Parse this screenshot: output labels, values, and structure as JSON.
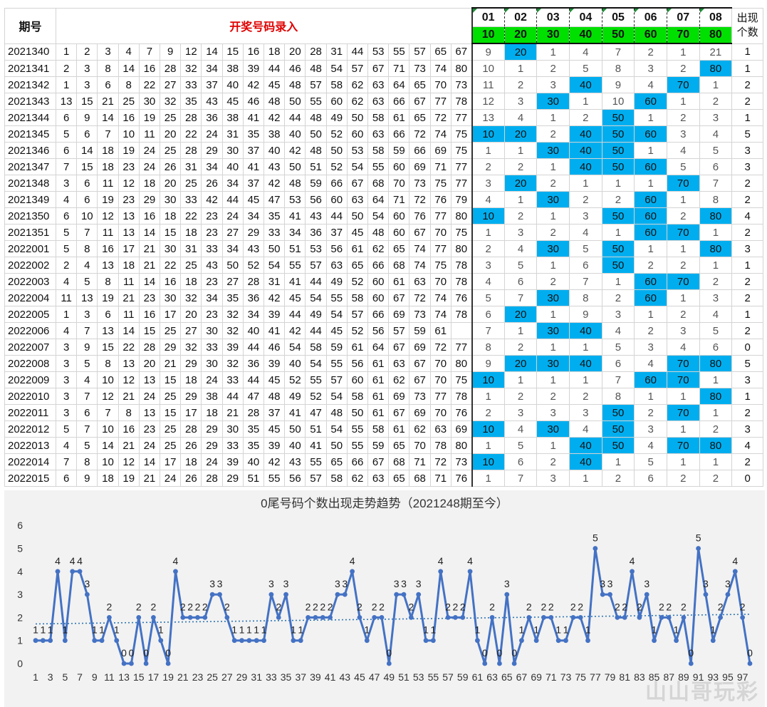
{
  "table": {
    "header_period": "期号",
    "header_title": "开奖号码录入",
    "positions": [
      "01",
      "02",
      "03",
      "04",
      "05",
      "06",
      "07",
      "08"
    ],
    "targets": [
      "10",
      "20",
      "30",
      "40",
      "50",
      "60",
      "70",
      "80"
    ],
    "count_header_line1": "出现",
    "count_header_line2": "个数",
    "rows": [
      {
        "period": "2021340",
        "nums": [
          "1",
          "2",
          "3",
          "4",
          "7",
          "9",
          "12",
          "14",
          "15",
          "16",
          "18",
          "20",
          "28",
          "31",
          "44",
          "53",
          "55",
          "57",
          "65",
          "67"
        ],
        "miss": [
          "9",
          "20",
          "1",
          "4",
          "7",
          "2",
          "1",
          "21"
        ],
        "hits": [
          1
        ],
        "count": "1"
      },
      {
        "period": "2021341",
        "nums": [
          "2",
          "3",
          "8",
          "14",
          "16",
          "28",
          "32",
          "34",
          "38",
          "39",
          "44",
          "46",
          "48",
          "54",
          "57",
          "67",
          "71",
          "73",
          "74",
          "80"
        ],
        "miss": [
          "10",
          "1",
          "2",
          "5",
          "8",
          "3",
          "2",
          "80"
        ],
        "hits": [
          7
        ],
        "count": "1"
      },
      {
        "period": "2021342",
        "nums": [
          "1",
          "3",
          "6",
          "8",
          "22",
          "27",
          "33",
          "37",
          "40",
          "42",
          "45",
          "48",
          "57",
          "58",
          "62",
          "63",
          "64",
          "65",
          "70",
          "73"
        ],
        "miss": [
          "11",
          "2",
          "3",
          "40",
          "9",
          "4",
          "70",
          "1"
        ],
        "hits": [
          3,
          6
        ],
        "count": "2"
      },
      {
        "period": "2021343",
        "nums": [
          "13",
          "15",
          "21",
          "25",
          "30",
          "32",
          "35",
          "43",
          "45",
          "46",
          "48",
          "50",
          "55",
          "60",
          "62",
          "63",
          "66",
          "67",
          "77",
          "78"
        ],
        "miss": [
          "12",
          "3",
          "30",
          "1",
          "10",
          "60",
          "1",
          "2"
        ],
        "hits": [
          2,
          5
        ],
        "count": "2"
      },
      {
        "period": "2021344",
        "nums": [
          "6",
          "9",
          "14",
          "16",
          "19",
          "25",
          "28",
          "36",
          "38",
          "41",
          "42",
          "44",
          "48",
          "49",
          "50",
          "58",
          "61",
          "65",
          "72",
          "77"
        ],
        "miss": [
          "13",
          "4",
          "1",
          "2",
          "50",
          "1",
          "2",
          "3"
        ],
        "hits": [
          4
        ],
        "count": "1"
      },
      {
        "period": "2021345",
        "nums": [
          "5",
          "6",
          "7",
          "10",
          "11",
          "20",
          "22",
          "24",
          "31",
          "35",
          "38",
          "40",
          "50",
          "52",
          "60",
          "63",
          "66",
          "72",
          "74",
          "75"
        ],
        "miss": [
          "10",
          "20",
          "2",
          "40",
          "50",
          "60",
          "3",
          "4"
        ],
        "hits": [
          0,
          1,
          3,
          4,
          5
        ],
        "count": "5"
      },
      {
        "period": "2021346",
        "nums": [
          "6",
          "14",
          "18",
          "19",
          "24",
          "25",
          "28",
          "29",
          "30",
          "37",
          "40",
          "42",
          "48",
          "50",
          "53",
          "58",
          "59",
          "66",
          "69",
          "75"
        ],
        "miss": [
          "1",
          "1",
          "30",
          "40",
          "50",
          "1",
          "4",
          "5"
        ],
        "hits": [
          2,
          3,
          4
        ],
        "count": "3"
      },
      {
        "period": "2021347",
        "nums": [
          "7",
          "15",
          "18",
          "23",
          "24",
          "26",
          "31",
          "34",
          "40",
          "41",
          "43",
          "50",
          "51",
          "52",
          "54",
          "55",
          "60",
          "69",
          "71",
          "77"
        ],
        "miss": [
          "2",
          "2",
          "1",
          "40",
          "50",
          "60",
          "5",
          "6"
        ],
        "hits": [
          3,
          4,
          5
        ],
        "count": "3"
      },
      {
        "period": "2021348",
        "nums": [
          "3",
          "6",
          "11",
          "12",
          "18",
          "20",
          "25",
          "26",
          "34",
          "37",
          "42",
          "48",
          "59",
          "66",
          "67",
          "68",
          "70",
          "73",
          "75",
          "77"
        ],
        "miss": [
          "3",
          "20",
          "2",
          "1",
          "1",
          "1",
          "70",
          "7"
        ],
        "hits": [
          1,
          6
        ],
        "count": "2"
      },
      {
        "period": "2021349",
        "nums": [
          "4",
          "6",
          "19",
          "23",
          "29",
          "30",
          "33",
          "42",
          "44",
          "45",
          "47",
          "53",
          "56",
          "60",
          "63",
          "64",
          "71",
          "72",
          "76",
          "79"
        ],
        "miss": [
          "4",
          "1",
          "30",
          "2",
          "2",
          "60",
          "1",
          "8"
        ],
        "hits": [
          2,
          5
        ],
        "count": "2"
      },
      {
        "period": "2021350",
        "nums": [
          "6",
          "10",
          "12",
          "13",
          "16",
          "18",
          "22",
          "23",
          "24",
          "34",
          "35",
          "41",
          "43",
          "44",
          "50",
          "54",
          "60",
          "76",
          "77",
          "80"
        ],
        "miss": [
          "10",
          "2",
          "1",
          "3",
          "50",
          "60",
          "2",
          "80"
        ],
        "hits": [
          0,
          4,
          5,
          7
        ],
        "count": "4"
      },
      {
        "period": "2021351",
        "nums": [
          "5",
          "7",
          "11",
          "13",
          "14",
          "15",
          "18",
          "23",
          "27",
          "29",
          "33",
          "34",
          "36",
          "37",
          "45",
          "48",
          "60",
          "67",
          "70",
          "75"
        ],
        "miss": [
          "1",
          "3",
          "2",
          "4",
          "1",
          "60",
          "70",
          "1"
        ],
        "hits": [
          5,
          6
        ],
        "count": "2"
      },
      {
        "period": "2022001",
        "nums": [
          "5",
          "8",
          "16",
          "17",
          "21",
          "30",
          "31",
          "33",
          "34",
          "43",
          "50",
          "51",
          "53",
          "56",
          "61",
          "62",
          "65",
          "74",
          "77",
          "80"
        ],
        "miss": [
          "2",
          "4",
          "30",
          "5",
          "50",
          "1",
          "1",
          "80"
        ],
        "hits": [
          2,
          4,
          7
        ],
        "count": "3"
      },
      {
        "period": "2022002",
        "nums": [
          "2",
          "4",
          "13",
          "18",
          "21",
          "22",
          "25",
          "43",
          "50",
          "52",
          "54",
          "55",
          "57",
          "63",
          "65",
          "66",
          "68",
          "74",
          "75",
          "78"
        ],
        "miss": [
          "3",
          "5",
          "1",
          "6",
          "50",
          "2",
          "2",
          "1"
        ],
        "hits": [
          4
        ],
        "count": "1"
      },
      {
        "period": "2022003",
        "nums": [
          "4",
          "5",
          "8",
          "11",
          "14",
          "16",
          "18",
          "23",
          "27",
          "28",
          "31",
          "41",
          "44",
          "49",
          "52",
          "60",
          "61",
          "63",
          "70",
          "78"
        ],
        "miss": [
          "4",
          "6",
          "2",
          "7",
          "1",
          "60",
          "70",
          "2"
        ],
        "hits": [
          5,
          6
        ],
        "count": "2"
      },
      {
        "period": "2022004",
        "nums": [
          "11",
          "13",
          "19",
          "21",
          "23",
          "30",
          "32",
          "34",
          "35",
          "36",
          "42",
          "45",
          "54",
          "55",
          "58",
          "60",
          "67",
          "72",
          "74",
          "76"
        ],
        "miss": [
          "5",
          "7",
          "30",
          "8",
          "2",
          "60",
          "1",
          "3"
        ],
        "hits": [
          2,
          5
        ],
        "count": "2"
      },
      {
        "period": "2022005",
        "nums": [
          "1",
          "3",
          "6",
          "11",
          "16",
          "17",
          "20",
          "23",
          "32",
          "34",
          "39",
          "44",
          "49",
          "54",
          "57",
          "66",
          "69",
          "73",
          "74",
          "78"
        ],
        "miss": [
          "6",
          "20",
          "1",
          "9",
          "3",
          "1",
          "2",
          "4"
        ],
        "hits": [
          1
        ],
        "count": "1"
      },
      {
        "period": "2022006",
        "nums": [
          "4",
          "7",
          "13",
          "14",
          "15",
          "25",
          "27",
          "30",
          "32",
          "40",
          "41",
          "42",
          "44",
          "45",
          "52",
          "56",
          "57",
          "59",
          "61"
        ],
        "miss": [
          "7",
          "1",
          "30",
          "40",
          "4",
          "2",
          "3",
          "5"
        ],
        "hits": [
          2,
          3
        ],
        "count": "2"
      },
      {
        "period": "2022007",
        "nums": [
          "3",
          "9",
          "15",
          "22",
          "28",
          "29",
          "32",
          "33",
          "39",
          "44",
          "46",
          "54",
          "58",
          "59",
          "61",
          "64",
          "67",
          "69",
          "72",
          "77"
        ],
        "miss": [
          "8",
          "2",
          "1",
          "1",
          "5",
          "3",
          "4",
          "6"
        ],
        "hits": [],
        "count": "0"
      },
      {
        "period": "2022008",
        "nums": [
          "3",
          "5",
          "8",
          "13",
          "20",
          "21",
          "29",
          "30",
          "32",
          "36",
          "39",
          "40",
          "54",
          "55",
          "56",
          "61",
          "63",
          "67",
          "70",
          "80"
        ],
        "miss": [
          "9",
          "20",
          "30",
          "40",
          "6",
          "4",
          "70",
          "80"
        ],
        "hits": [
          1,
          2,
          3,
          6,
          7
        ],
        "count": "5"
      },
      {
        "period": "2022009",
        "nums": [
          "3",
          "4",
          "10",
          "12",
          "13",
          "15",
          "18",
          "24",
          "33",
          "44",
          "45",
          "52",
          "55",
          "57",
          "60",
          "61",
          "62",
          "67",
          "70",
          "75"
        ],
        "miss": [
          "10",
          "1",
          "1",
          "1",
          "7",
          "60",
          "70",
          "1"
        ],
        "hits": [
          0,
          5,
          6
        ],
        "count": "3"
      },
      {
        "period": "2022010",
        "nums": [
          "3",
          "7",
          "12",
          "21",
          "24",
          "25",
          "29",
          "38",
          "44",
          "47",
          "48",
          "49",
          "52",
          "54",
          "58",
          "61",
          "69",
          "73",
          "77",
          "78",
          "80"
        ],
        "miss": [
          "1",
          "2",
          "2",
          "2",
          "8",
          "1",
          "1",
          "80"
        ],
        "hits": [
          7
        ],
        "count": "1"
      },
      {
        "period": "2022011",
        "nums": [
          "3",
          "6",
          "7",
          "8",
          "13",
          "15",
          "17",
          "18",
          "21",
          "28",
          "37",
          "41",
          "47",
          "48",
          "50",
          "61",
          "67",
          "69",
          "70",
          "76"
        ],
        "miss": [
          "2",
          "3",
          "3",
          "3",
          "50",
          "2",
          "70",
          "1"
        ],
        "hits": [
          4,
          6
        ],
        "count": "2"
      },
      {
        "period": "2022012",
        "nums": [
          "5",
          "7",
          "10",
          "16",
          "23",
          "25",
          "28",
          "29",
          "30",
          "35",
          "45",
          "50",
          "51",
          "54",
          "55",
          "58",
          "61",
          "62",
          "63",
          "69"
        ],
        "miss": [
          "10",
          "4",
          "30",
          "4",
          "50",
          "3",
          "1",
          "2"
        ],
        "hits": [
          0,
          2,
          4
        ],
        "count": "3"
      },
      {
        "period": "2022013",
        "nums": [
          "4",
          "5",
          "14",
          "21",
          "24",
          "25",
          "26",
          "29",
          "33",
          "35",
          "39",
          "40",
          "41",
          "50",
          "55",
          "59",
          "65",
          "70",
          "78",
          "80"
        ],
        "miss": [
          "1",
          "5",
          "1",
          "40",
          "50",
          "4",
          "70",
          "80"
        ],
        "hits": [
          3,
          4,
          6,
          7
        ],
        "count": "4"
      },
      {
        "period": "2022014",
        "nums": [
          "7",
          "8",
          "10",
          "12",
          "14",
          "17",
          "18",
          "24",
          "39",
          "40",
          "42",
          "43",
          "55",
          "65",
          "66",
          "67",
          "68",
          "71",
          "72",
          "73"
        ],
        "miss": [
          "10",
          "6",
          "2",
          "40",
          "1",
          "5",
          "1",
          "1"
        ],
        "hits": [
          0,
          3
        ],
        "count": "2"
      },
      {
        "period": "2022015",
        "nums": [
          "6",
          "9",
          "18",
          "19",
          "21",
          "24",
          "26",
          "28",
          "29",
          "51",
          "55",
          "56",
          "57",
          "58",
          "62",
          "63",
          "65",
          "68",
          "71",
          "76"
        ],
        "miss": [
          "1",
          "7",
          "3",
          "1",
          "2",
          "6",
          "2",
          "2"
        ],
        "hits": [],
        "count": "0"
      }
    ]
  },
  "chart_data": {
    "type": "line",
    "title": "0尾号码个数出现走势趋势（2021248期至今）",
    "xlabel": "",
    "ylabel": "",
    "ylim": [
      0,
      6
    ],
    "yticks": [
      "0",
      "1",
      "2",
      "3",
      "4",
      "5",
      "6"
    ],
    "xticks": [
      "1",
      "3",
      "5",
      "7",
      "9",
      "11",
      "13",
      "15",
      "17",
      "19",
      "21",
      "23",
      "25",
      "27",
      "29",
      "31",
      "33",
      "35",
      "37",
      "39",
      "41",
      "43",
      "45",
      "47",
      "49",
      "51",
      "53",
      "55",
      "57",
      "59",
      "61",
      "63",
      "65",
      "67",
      "69",
      "71",
      "73",
      "75",
      "77",
      "79",
      "81",
      "83",
      "85",
      "87",
      "89",
      "91",
      "93",
      "95",
      "97"
    ],
    "x_start": 1,
    "values": [
      1,
      1,
      1,
      4,
      1,
      4,
      4,
      3,
      1,
      1,
      2,
      1,
      0,
      0,
      2,
      0,
      2,
      1,
      0,
      4,
      2,
      2,
      2,
      2,
      3,
      3,
      2,
      1,
      1,
      1,
      1,
      1,
      3,
      2,
      3,
      1,
      1,
      2,
      2,
      2,
      2,
      3,
      3,
      4,
      2,
      1,
      2,
      2,
      0,
      3,
      3,
      2,
      3,
      1,
      1,
      4,
      2,
      2,
      2,
      4,
      1,
      0,
      2,
      0,
      3,
      0,
      1,
      2,
      1,
      2,
      2,
      1,
      1,
      2,
      2,
      1,
      5,
      3,
      3,
      2,
      2,
      4,
      2,
      3,
      1,
      2,
      2,
      1,
      2,
      0,
      5,
      3,
      1,
      2,
      3,
      4,
      2,
      0
    ],
    "trendline": {
      "style": "dotted",
      "start_value": 1.72,
      "end_value": 2.14
    },
    "grid": false,
    "legend": "none",
    "line_color": "#4472c4",
    "trend_color": "#2e75b6"
  },
  "watermark_text": "山山哥玩彩"
}
